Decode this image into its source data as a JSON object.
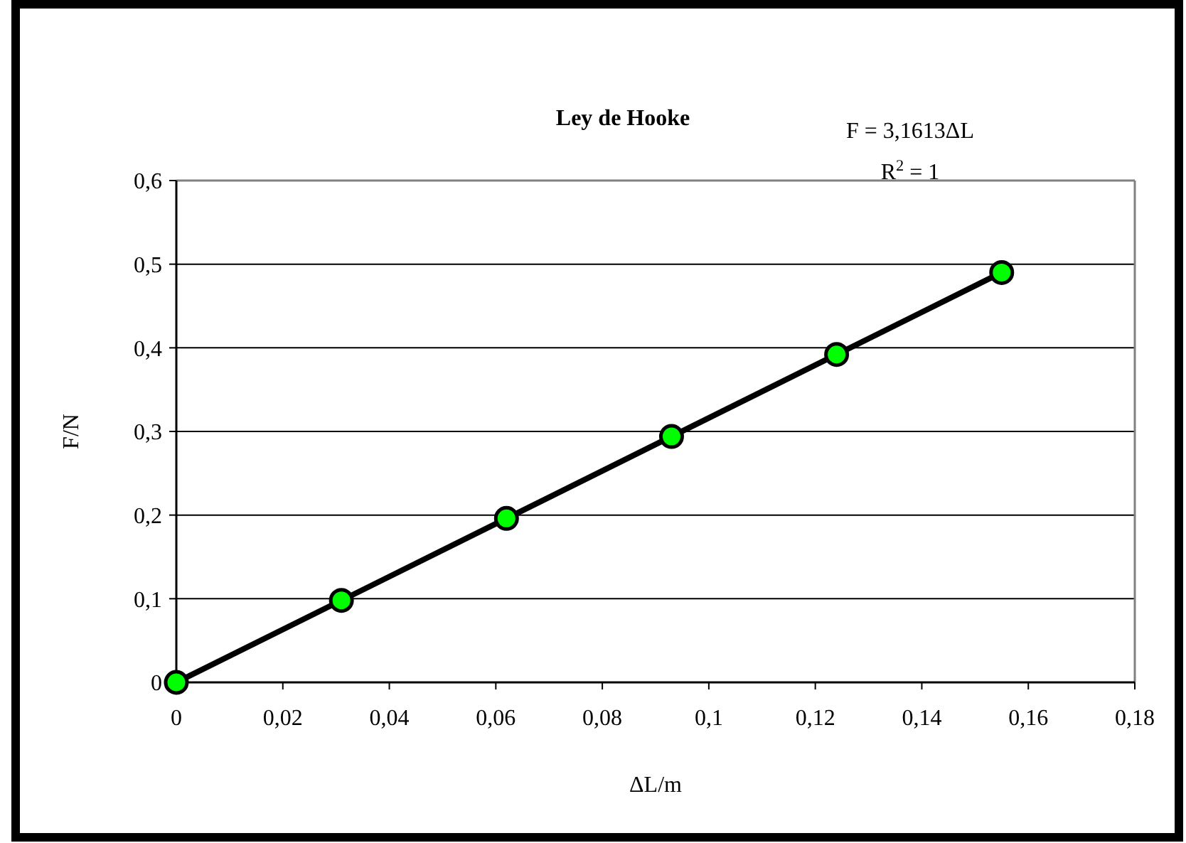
{
  "chart_data": {
    "type": "scatter",
    "title": "Ley de Hooke",
    "xlabel": "ΔL/m",
    "ylabel": "F/N",
    "annotations": [
      "F = 3,1613ΔL",
      "R$^{2}$ = 1"
    ],
    "series": [
      {
        "type": "line",
        "color": "#000000",
        "x": [
          0,
          0.155
        ],
        "values": [
          0,
          0.49
        ],
        "marker": "none"
      },
      {
        "color": "#00ff00",
        "x": [
          0,
          0.031,
          0.062,
          0.093,
          0.124,
          0.155
        ],
        "values": [
          0,
          0.098,
          0.196,
          0.294,
          0.392,
          0.49
        ],
        "marker": "circle"
      }
    ],
    "xlim": [
      0,
      0.18
    ],
    "xticks": [
      0,
      {
        "value": 0.02,
        "label": "0,02"
      },
      {
        "value": 0.04,
        "label": "0,04"
      },
      {
        "value": 0.06,
        "label": "0,06"
      },
      {
        "value": 0.08,
        "label": "0,08"
      },
      {
        "value": 0.1,
        "label": "0,1"
      },
      {
        "value": 0.12,
        "label": "0,12"
      },
      {
        "value": 0.14,
        "label": "0,14"
      },
      {
        "value": 0.16,
        "label": "0,16"
      },
      {
        "value": 0.18,
        "label": "0,18"
      }
    ],
    "ylim": [
      0,
      0.6
    ],
    "yticks": [
      0,
      {
        "value": 0.1,
        "label": "0,1"
      },
      {
        "value": 0.2,
        "label": "0,2"
      },
      {
        "value": 0.3,
        "label": "0,3"
      },
      {
        "value": 0.4,
        "label": "0,4"
      },
      {
        "value": 0.5,
        "label": "0,5"
      },
      {
        "value": 0.6,
        "label": "0,6"
      }
    ],
    "grid": "y"
  }
}
